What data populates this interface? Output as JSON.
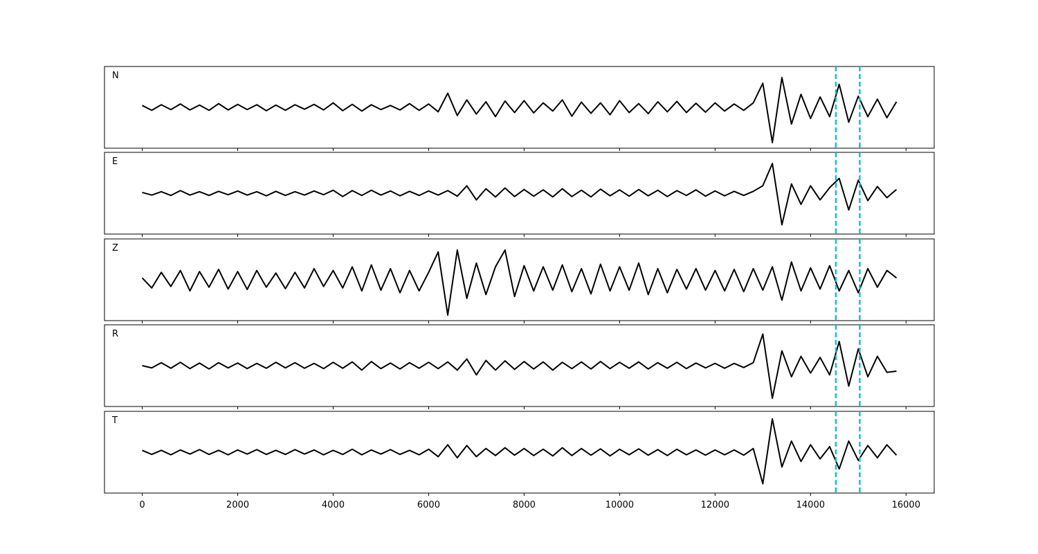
{
  "chart_data": [
    {
      "type": "line",
      "title": "N",
      "color": "#000000",
      "vline_color": "#17becf",
      "vlines": [
        14530,
        15030
      ],
      "xlim": [
        -790,
        16590
      ],
      "ylim": [
        -1.1,
        1.1
      ],
      "xticks": [
        0,
        2000,
        4000,
        6000,
        8000,
        10000,
        12000,
        14000,
        16000
      ],
      "x": [
        0,
        200,
        400,
        600,
        800,
        1000,
        1200,
        1400,
        1600,
        1800,
        2000,
        2200,
        2400,
        2600,
        2800,
        3000,
        3200,
        3400,
        3600,
        3800,
        4000,
        4200,
        4400,
        4600,
        4800,
        5000,
        5200,
        5400,
        5600,
        5800,
        6000,
        6200,
        6400,
        6600,
        6800,
        7000,
        7200,
        7400,
        7600,
        7800,
        8000,
        8200,
        8400,
        8600,
        8800,
        9000,
        9200,
        9400,
        9600,
        9800,
        10000,
        10200,
        10400,
        10600,
        10800,
        11000,
        11200,
        11400,
        11600,
        11800,
        12000,
        12200,
        12400,
        12600,
        12800,
        13000,
        13200,
        13400,
        13600,
        13800,
        14000,
        14200,
        14400,
        14600,
        14800,
        15000,
        15200,
        15400,
        15600,
        15800
      ],
      "values": [
        0.05,
        -0.08,
        0.07,
        -0.06,
        0.09,
        -0.07,
        0.06,
        -0.08,
        0.1,
        -0.07,
        0.08,
        -0.06,
        0.07,
        -0.09,
        0.06,
        -0.08,
        0.07,
        -0.05,
        0.08,
        -0.07,
        0.12,
        -0.09,
        0.08,
        -0.1,
        0.07,
        -0.06,
        0.05,
        -0.07,
        0.1,
        -0.08,
        0.09,
        -0.12,
        0.38,
        -0.22,
        0.2,
        -0.18,
        0.15,
        -0.25,
        0.17,
        -0.14,
        0.18,
        -0.15,
        0.12,
        -0.1,
        0.2,
        -0.24,
        0.14,
        -0.16,
        0.12,
        -0.2,
        0.18,
        -0.14,
        0.1,
        -0.17,
        0.15,
        -0.12,
        0.16,
        -0.14,
        0.11,
        -0.13,
        0.12,
        -0.1,
        0.09,
        -0.08,
        0.12,
        0.65,
        -0.95,
        0.8,
        -0.45,
        0.35,
        -0.3,
        0.28,
        -0.25,
        0.62,
        -0.4,
        0.3,
        -0.25,
        0.22,
        -0.28,
        0.15
      ]
    },
    {
      "type": "line",
      "title": "E",
      "color": "#000000",
      "vline_color": "#17becf",
      "vlines": [
        14530,
        15030
      ],
      "xlim": [
        -790,
        16590
      ],
      "ylim": [
        -1.1,
        1.1
      ],
      "xticks": [
        0,
        2000,
        4000,
        6000,
        8000,
        10000,
        12000,
        14000,
        16000
      ],
      "x": [
        0,
        200,
        400,
        600,
        800,
        1000,
        1200,
        1400,
        1600,
        1800,
        2000,
        2200,
        2400,
        2600,
        2800,
        3000,
        3200,
        3400,
        3600,
        3800,
        4000,
        4200,
        4400,
        4600,
        4800,
        5000,
        5200,
        5400,
        5600,
        5800,
        6000,
        6200,
        6400,
        6600,
        6800,
        7000,
        7200,
        7400,
        7600,
        7800,
        8000,
        8200,
        8400,
        8600,
        8800,
        9000,
        9200,
        9400,
        9600,
        9800,
        10000,
        10200,
        10400,
        10600,
        10800,
        11000,
        11200,
        11400,
        11600,
        11800,
        12000,
        12200,
        12400,
        12600,
        12800,
        13000,
        13200,
        13400,
        13600,
        13800,
        14000,
        14200,
        14400,
        14600,
        14800,
        15000,
        15200,
        15400,
        15600,
        15800
      ],
      "values": [
        0.02,
        -0.05,
        0.04,
        -0.06,
        0.07,
        -0.05,
        0.04,
        -0.06,
        0.05,
        -0.04,
        0.06,
        -0.05,
        0.04,
        -0.07,
        0.05,
        -0.06,
        0.04,
        -0.05,
        0.06,
        -0.04,
        0.08,
        -0.09,
        0.07,
        -0.06,
        0.08,
        -0.05,
        0.06,
        -0.07,
        0.05,
        -0.06,
        0.06,
        -0.05,
        0.07,
        -0.08,
        0.2,
        -0.18,
        0.12,
        -0.1,
        0.14,
        -0.09,
        0.1,
        -0.08,
        0.09,
        -0.1,
        0.12,
        -0.09,
        0.08,
        -0.1,
        0.11,
        -0.07,
        0.09,
        -0.08,
        0.1,
        -0.07,
        0.08,
        -0.09,
        0.07,
        -0.06,
        0.09,
        -0.08,
        0.06,
        -0.07,
        0.05,
        -0.06,
        0.05,
        0.2,
        0.8,
        -0.85,
        0.25,
        -0.3,
        0.2,
        -0.18,
        0.15,
        0.4,
        -0.45,
        0.35,
        -0.2,
        0.18,
        -0.12,
        0.1
      ]
    },
    {
      "type": "line",
      "title": "Z",
      "color": "#000000",
      "vline_color": "#17becf",
      "vlines": [
        14530,
        15030
      ],
      "xlim": [
        -790,
        16590
      ],
      "ylim": [
        -1.1,
        1.1
      ],
      "xticks": [
        0,
        2000,
        4000,
        6000,
        8000,
        10000,
        12000,
        14000,
        16000
      ],
      "x": [
        0,
        200,
        400,
        600,
        800,
        1000,
        1200,
        1400,
        1600,
        1800,
        2000,
        2200,
        2400,
        2600,
        2800,
        3000,
        3200,
        3400,
        3600,
        3800,
        4000,
        4200,
        4400,
        4600,
        4800,
        5000,
        5200,
        5400,
        5600,
        5800,
        6000,
        6200,
        6400,
        6600,
        6800,
        7000,
        7200,
        7400,
        7600,
        7800,
        8000,
        8200,
        8400,
        8600,
        8800,
        9000,
        9200,
        9400,
        9600,
        9800,
        10000,
        10200,
        10400,
        10600,
        10800,
        11000,
        11200,
        11400,
        11600,
        11800,
        12000,
        12200,
        12400,
        12600,
        12800,
        13000,
        13200,
        13400,
        13600,
        13800,
        14000,
        14200,
        14400,
        14600,
        14800,
        15000,
        15200,
        15400,
        15600,
        15800
      ],
      "values": [
        0.05,
        -0.22,
        0.2,
        -0.18,
        0.25,
        -0.3,
        0.22,
        -0.2,
        0.28,
        -0.25,
        0.22,
        -0.26,
        0.25,
        -0.2,
        0.18,
        -0.24,
        0.2,
        -0.22,
        0.3,
        -0.18,
        0.25,
        -0.22,
        0.35,
        -0.3,
        0.4,
        -0.28,
        0.3,
        -0.35,
        0.25,
        -0.3,
        0.2,
        0.75,
        -0.95,
        0.8,
        -0.5,
        0.45,
        -0.4,
        0.35,
        0.8,
        -0.45,
        0.38,
        -0.3,
        0.35,
        -0.28,
        0.4,
        -0.32,
        0.3,
        -0.38,
        0.42,
        -0.3,
        0.35,
        -0.28,
        0.45,
        -0.4,
        0.3,
        -0.35,
        0.28,
        -0.25,
        0.3,
        -0.28,
        0.25,
        -0.3,
        0.28,
        -0.32,
        0.3,
        -0.28,
        0.35,
        -0.55,
        0.48,
        -0.3,
        0.32,
        -0.25,
        0.38,
        -0.3,
        0.25,
        -0.35,
        0.3,
        -0.2,
        0.25,
        0.05
      ]
    },
    {
      "type": "line",
      "title": "R",
      "color": "#000000",
      "vline_color": "#17becf",
      "vlines": [
        14530,
        15030
      ],
      "xlim": [
        -790,
        16590
      ],
      "ylim": [
        -1.1,
        1.1
      ],
      "xticks": [
        0,
        2000,
        4000,
        6000,
        8000,
        10000,
        12000,
        14000,
        16000
      ],
      "x": [
        0,
        200,
        400,
        600,
        800,
        1000,
        1200,
        1400,
        1600,
        1800,
        2000,
        2200,
        2400,
        2600,
        2800,
        3000,
        3200,
        3400,
        3600,
        3800,
        4000,
        4200,
        4400,
        4600,
        4800,
        5000,
        5200,
        5400,
        5600,
        5800,
        6000,
        6200,
        6400,
        6600,
        6800,
        7000,
        7200,
        7400,
        7600,
        7800,
        8000,
        8200,
        8400,
        8600,
        8800,
        9000,
        9200,
        9400,
        9600,
        9800,
        10000,
        10200,
        10400,
        10600,
        10800,
        11000,
        11200,
        11400,
        11600,
        11800,
        12000,
        12200,
        12400,
        12600,
        12800,
        13000,
        13200,
        13400,
        13600,
        13800,
        14000,
        14200,
        14400,
        14600,
        14800,
        15000,
        15200,
        15400,
        15600,
        15800
      ],
      "values": [
        0.0,
        -0.06,
        0.08,
        -0.07,
        0.09,
        -0.08,
        0.07,
        -0.09,
        0.08,
        -0.06,
        0.07,
        -0.08,
        0.06,
        -0.07,
        0.09,
        -0.06,
        0.08,
        -0.07,
        0.06,
        -0.08,
        0.09,
        -0.07,
        0.1,
        -0.12,
        0.11,
        -0.08,
        0.07,
        -0.09,
        0.08,
        -0.07,
        0.09,
        -0.08,
        0.1,
        -0.12,
        0.18,
        -0.25,
        0.14,
        -0.12,
        0.13,
        -0.1,
        0.11,
        -0.09,
        0.1,
        -0.12,
        0.09,
        -0.08,
        0.1,
        -0.09,
        0.11,
        -0.08,
        0.09,
        -0.07,
        0.1,
        -0.09,
        0.08,
        -0.07,
        0.09,
        -0.08,
        0.07,
        -0.06,
        0.06,
        -0.07,
        0.06,
        -0.05,
        0.08,
        0.85,
        -0.88,
        0.4,
        -0.3,
        0.25,
        -0.2,
        0.22,
        -0.25,
        0.65,
        -0.55,
        0.45,
        -0.3,
        0.25,
        -0.18,
        -0.15
      ]
    },
    {
      "type": "line",
      "title": "T",
      "color": "#000000",
      "vline_color": "#17becf",
      "vlines": [
        14530,
        15030
      ],
      "xlim": [
        -790,
        16590
      ],
      "ylim": [
        -1.1,
        1.1
      ],
      "xticks": [
        0,
        2000,
        4000,
        6000,
        8000,
        10000,
        12000,
        14000,
        16000
      ],
      "x": [
        0,
        200,
        400,
        600,
        800,
        1000,
        1200,
        1400,
        1600,
        1800,
        2000,
        2200,
        2400,
        2600,
        2800,
        3000,
        3200,
        3400,
        3600,
        3800,
        4000,
        4200,
        4400,
        4600,
        4800,
        5000,
        5200,
        5400,
        5600,
        5800,
        6000,
        6200,
        6400,
        6600,
        6800,
        7000,
        7200,
        7400,
        7600,
        7800,
        8000,
        8200,
        8400,
        8600,
        8800,
        9000,
        9200,
        9400,
        9600,
        9800,
        10000,
        10200,
        10400,
        10600,
        10800,
        11000,
        11200,
        11400,
        11600,
        11800,
        12000,
        12200,
        12400,
        12600,
        12800,
        13000,
        13200,
        13400,
        13600,
        13800,
        14000,
        14200,
        14400,
        14600,
        14800,
        15000,
        15200,
        15400,
        15600,
        15800
      ],
      "values": [
        0.05,
        -0.06,
        0.05,
        -0.07,
        0.06,
        -0.05,
        0.07,
        -0.06,
        0.05,
        -0.07,
        0.06,
        -0.05,
        0.07,
        -0.06,
        0.05,
        -0.06,
        0.07,
        -0.05,
        0.06,
        -0.07,
        0.05,
        -0.06,
        0.08,
        -0.07,
        0.06,
        -0.05,
        0.07,
        -0.06,
        0.05,
        -0.07,
        0.08,
        -0.12,
        0.2,
        -0.15,
        0.18,
        -0.12,
        0.1,
        -0.09,
        0.12,
        -0.08,
        0.1,
        -0.09,
        0.08,
        -0.1,
        0.12,
        -0.09,
        0.1,
        -0.08,
        0.09,
        -0.1,
        0.08,
        -0.07,
        0.09,
        -0.08,
        0.07,
        -0.09,
        0.08,
        -0.07,
        0.06,
        -0.08,
        0.06,
        -0.07,
        0.06,
        -0.08,
        0.1,
        -0.85,
        0.9,
        -0.4,
        0.3,
        -0.25,
        0.2,
        -0.18,
        0.15,
        -0.45,
        0.3,
        -0.22,
        0.18,
        -0.15,
        0.2,
        -0.08
      ]
    }
  ]
}
